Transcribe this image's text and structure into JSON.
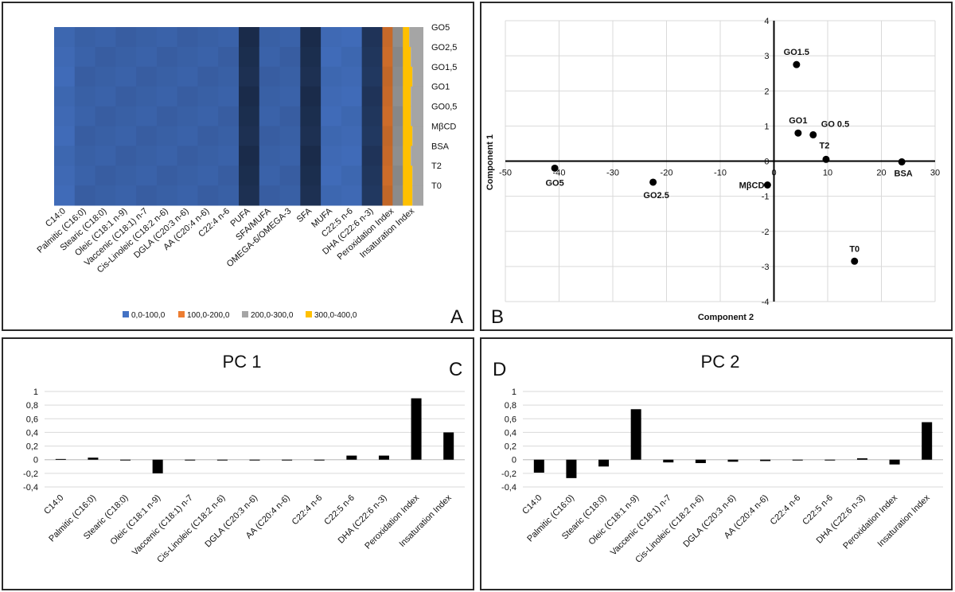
{
  "chart_data": [
    {
      "panel": "A",
      "type": "heatmap",
      "panel_label": "A",
      "columns": [
        "C14:0",
        "Palmitic (C16:0)",
        "Stearic (C18:0)",
        "Oleic (C18:1 n-9)",
        "Vaccenic (C18:1) n-7",
        "Cis-Linoleic (C18:2 n-6)",
        "DGLA (C20:3 n-6)",
        "AA (C20:4 n-6)",
        "C22:4 n-6",
        "PUFA",
        "SFA/MUFA",
        "OMEGA-6/OMEGA-3",
        "SFA",
        "MUFA",
        "C22:5 n-6",
        "DHA (C22:6 n-3)",
        "Peroxidation Index",
        "Insaturation Index"
      ],
      "rows": [
        "GO5",
        "GO2,5",
        "GO1,5",
        "GO1",
        "GO0,5",
        "MβCD",
        "BSA",
        "T2",
        "T0"
      ],
      "legend": [
        {
          "label": "0,0-100,0",
          "color": "#4472c4"
        },
        {
          "label": "100,0-200,0",
          "color": "#ed7d31"
        },
        {
          "label": "200,0-300,0",
          "color": "#a5a5a5"
        },
        {
          "label": "300,0-400,0",
          "color": "#ffc000"
        }
      ],
      "column_range": [
        "0,0-100,0",
        "0,0-100,0",
        "0,0-100,0",
        "0,0-100,0",
        "0,0-100,0",
        "0,0-100,0",
        "0,0-100,0",
        "0,0-100,0",
        "0,0-100,0",
        "0,0-100,0",
        "0,0-100,0",
        "0,0-100,0",
        "0,0-100,0",
        "0,0-100,0",
        "0,0-100,0",
        "0,0-100,0",
        "100,0-200,0",
        "200,0-300,0"
      ]
    },
    {
      "panel": "B",
      "type": "scatter",
      "panel_label": "B",
      "xlabel": "Component 2",
      "ylabel": "Component 1",
      "xlim": [
        -50,
        30
      ],
      "ylim": [
        -4,
        4
      ],
      "xticks": [
        -50,
        -40,
        -30,
        -20,
        -10,
        0,
        10,
        20,
        30
      ],
      "yticks": [
        -4,
        -3,
        -2,
        -1,
        0,
        1,
        2,
        3,
        4
      ],
      "points": [
        {
          "label": "GO1.5",
          "x": 4.2,
          "y": 2.75
        },
        {
          "label": "GO1",
          "x": 4.5,
          "y": 0.8
        },
        {
          "label": "GO 0.5",
          "x": 7.3,
          "y": 0.75
        },
        {
          "label": "T2",
          "x": 9.7,
          "y": 0.05
        },
        {
          "label": "BSA",
          "x": 23.8,
          "y": -0.02
        },
        {
          "label": "GO5",
          "x": -40.8,
          "y": -0.2
        },
        {
          "label": "GO2.5",
          "x": -22.5,
          "y": -0.6
        },
        {
          "label": "MβCD",
          "x": -1.2,
          "y": -0.68
        },
        {
          "label": "T0",
          "x": 15.0,
          "y": -2.85
        }
      ]
    },
    {
      "panel": "C",
      "type": "bar",
      "panel_label": "C",
      "title": "PC 1",
      "categories": [
        "C14:0",
        "Palmitic (C16:0)",
        "Stearic (C18:0)",
        "Oleic (C18:1 n-9)",
        "Vaccenic (C18:1) n-7",
        "Cis-Linoleic (C18:2 n-6)",
        "DGLA (C20:3 n-6)",
        "AA (C20:4 n-6)",
        "C22:4 n-6",
        "C22:5 n-6",
        "DHA (C22:6 n-3)",
        "Peroxidation Index",
        "Insaturation Index"
      ],
      "values": [
        0.01,
        0.03,
        0.0,
        -0.2,
        -0.01,
        -0.01,
        -0.01,
        -0.01,
        -0.01,
        0.06,
        0.06,
        0.9,
        0.4
      ],
      "ylim": [
        -0.4,
        1
      ],
      "yticks": [
        "1",
        "0,8",
        "0,6",
        "0,4",
        "0,2",
        "0",
        "-0,2",
        "-0,4"
      ]
    },
    {
      "panel": "D",
      "type": "bar",
      "panel_label": "D",
      "title": "PC 2",
      "categories": [
        "C14:0",
        "Palmitic (C16:0)",
        "Stearic (C18:0)",
        "Oleic (C18:1 n-9)",
        "Vaccenic (C18:1) n-7",
        "Cis-Linoleic (C18:2 n-6)",
        "DGLA (C20:3 n-6)",
        "AA (C20:4 n-6)",
        "C22:4 n-6",
        "C22:5 n-6",
        "DHA (C22:6 n-3)",
        "Peroxidation Index",
        "Insaturation Index"
      ],
      "values": [
        -0.19,
        -0.27,
        -0.1,
        0.74,
        -0.04,
        -0.05,
        -0.03,
        -0.02,
        0.0,
        0.0,
        0.02,
        -0.07,
        0.55
      ],
      "ylim": [
        -0.4,
        1
      ],
      "yticks": [
        "1",
        "0,8",
        "0,6",
        "0,4",
        "0,2",
        "0",
        "-0,2",
        "-0,4"
      ]
    }
  ]
}
